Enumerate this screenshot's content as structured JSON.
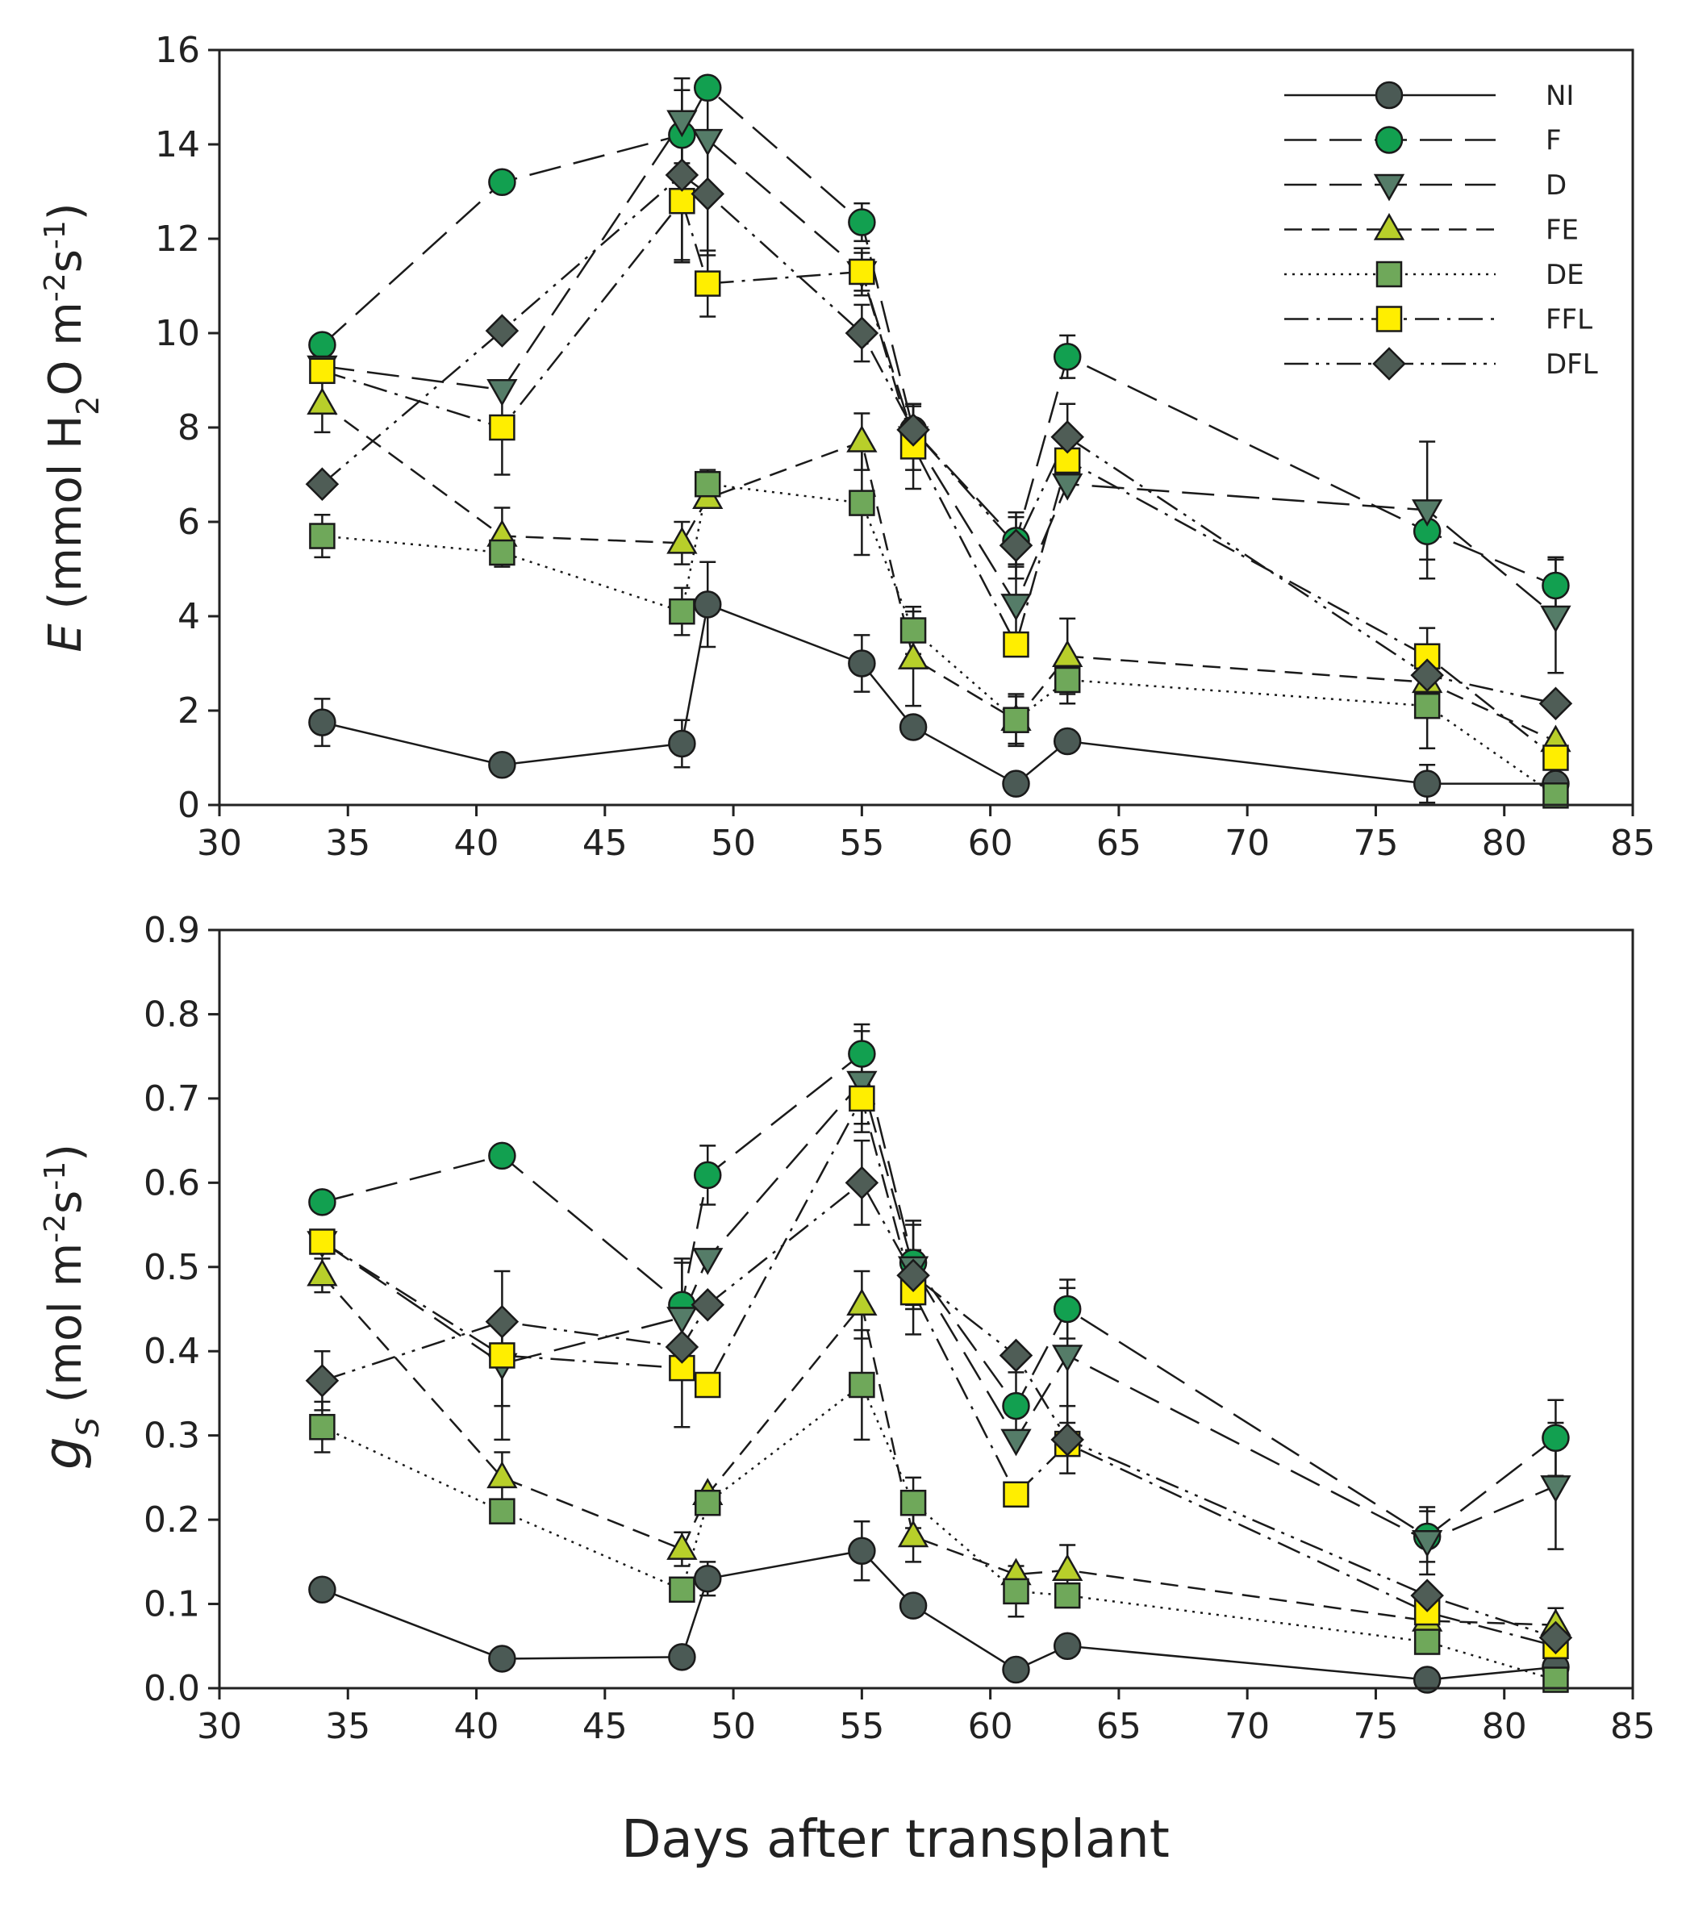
{
  "chart_data": [
    {
      "type": "line",
      "panel": "top",
      "ylabel_italic": "E",
      "ylabel_pre": " (mmol H",
      "ylabel_sub": "2",
      "ylabel_mid": "O m",
      "ylabel_sup1": "-2",
      "ylabel_s": "s",
      "ylabel_sup2": "-1",
      "ylabel_post": ")",
      "xlabel": "",
      "xlim": [
        30,
        85
      ],
      "ylim": [
        0,
        16
      ],
      "xticks": [
        "30",
        "35",
        "40",
        "45",
        "50",
        "55",
        "60",
        "65",
        "70",
        "75",
        "80",
        "85"
      ],
      "yticks": [
        "0",
        "2",
        "4",
        "6",
        "8",
        "10",
        "12",
        "14",
        "16"
      ],
      "series": [
        {
          "name": "NI",
          "x": [
            34,
            41,
            48,
            49,
            55,
            57,
            61,
            63,
            77,
            82
          ],
          "values": [
            1.75,
            0.85,
            1.3,
            4.25,
            3.0,
            1.65,
            0.45,
            1.35,
            0.45,
            0.45
          ],
          "err": [
            0.5,
            0,
            0.5,
            0.9,
            0.6,
            0,
            0,
            0,
            0.4,
            0
          ]
        },
        {
          "name": "F",
          "x": [
            34,
            41,
            48,
            49,
            55,
            57,
            61,
            63,
            77,
            82
          ],
          "values": [
            9.75,
            13.2,
            14.2,
            15.2,
            12.35,
            7.95,
            5.6,
            9.5,
            5.8,
            4.65
          ],
          "err": [
            0,
            0,
            0,
            0,
            0.4,
            0.5,
            0.5,
            0.45,
            0.6,
            0.6
          ]
        },
        {
          "name": "D",
          "x": [
            34,
            41,
            48,
            49,
            55,
            57,
            61,
            63,
            77,
            82
          ],
          "values": [
            9.3,
            8.8,
            14.5,
            14.1,
            11.3,
            7.8,
            4.25,
            6.8,
            6.25,
            4.0
          ],
          "err": [
            0,
            0,
            0.9,
            1.2,
            0.5,
            0.7,
            0.8,
            0,
            1.45,
            1.2
          ]
        },
        {
          "name": "FE",
          "x": [
            34,
            41,
            48,
            49,
            55,
            57,
            61,
            63,
            77,
            82
          ],
          "values": [
            8.5,
            5.7,
            5.55,
            6.5,
            7.7,
            3.1,
            1.8,
            3.15,
            2.6,
            1.35
          ],
          "err": [
            0.6,
            0.6,
            0.45,
            0,
            0.6,
            1.0,
            0.5,
            0.8,
            0.6,
            0
          ]
        },
        {
          "name": "DE",
          "x": [
            34,
            41,
            48,
            49,
            55,
            57,
            61,
            63,
            77,
            82
          ],
          "values": [
            5.7,
            5.35,
            4.1,
            6.8,
            6.4,
            3.7,
            1.8,
            2.65,
            2.1,
            0.2
          ],
          "err": [
            0.45,
            0.3,
            0.5,
            0.3,
            1.1,
            0.5,
            0.55,
            0.5,
            0.9,
            0
          ]
        },
        {
          "name": "FFL",
          "x": [
            34,
            41,
            48,
            49,
            55,
            57,
            61,
            63,
            77,
            82
          ],
          "values": [
            9.2,
            8.0,
            12.8,
            11.05,
            11.3,
            7.6,
            3.4,
            7.3,
            3.15,
            1.0
          ],
          "err": [
            0,
            1.0,
            1.3,
            0.7,
            0.4,
            0.9,
            0,
            0,
            0.6,
            0
          ]
        },
        {
          "name": "DFL",
          "x": [
            34,
            41,
            48,
            49,
            55,
            57,
            61,
            63,
            77,
            82
          ],
          "values": [
            6.8,
            10.05,
            13.35,
            12.95,
            10.0,
            7.95,
            5.5,
            7.8,
            2.75,
            2.15
          ],
          "err": [
            0,
            0,
            1.8,
            1.3,
            0.6,
            0,
            0.7,
            0.7,
            0,
            0
          ]
        }
      ]
    },
    {
      "type": "line",
      "panel": "bottom",
      "ylabel_italic": "g",
      "ylabel_sub_italic": "S",
      "ylabel_pre": " (mol m",
      "ylabel_sup1": "-2",
      "ylabel_s": "s",
      "ylabel_sup2": "-1",
      "ylabel_post": ")",
      "xlabel": "Days after transplant",
      "xlim": [
        30,
        85
      ],
      "ylim": [
        0,
        0.9
      ],
      "xticks": [
        "30",
        "35",
        "40",
        "45",
        "50",
        "55",
        "60",
        "65",
        "70",
        "75",
        "80",
        "85"
      ],
      "yticks": [
        "0.0",
        "0.1",
        "0.2",
        "0.3",
        "0.4",
        "0.5",
        "0.6",
        "0.7",
        "0.8",
        "0.9"
      ],
      "series": [
        {
          "name": "NI",
          "x": [
            34,
            41,
            48,
            49,
            55,
            57,
            61,
            63,
            77,
            82
          ],
          "values": [
            0.117,
            0.035,
            0.037,
            0.13,
            0.163,
            0.098,
            0.022,
            0.05,
            0.01,
            0.025
          ],
          "err": [
            0,
            0,
            0,
            0.02,
            0.035,
            0,
            0,
            0.01,
            0.01,
            0.01
          ]
        },
        {
          "name": "F",
          "x": [
            34,
            41,
            48,
            49,
            55,
            57,
            61,
            63,
            77,
            82
          ],
          "values": [
            0.577,
            0.632,
            0.455,
            0.609,
            0.753,
            0.505,
            0.335,
            0.45,
            0.18,
            0.297
          ],
          "err": [
            0,
            0,
            0.05,
            0.035,
            0.035,
            0.05,
            0.04,
            0.035,
            0.03,
            0.045
          ]
        },
        {
          "name": "D",
          "x": [
            34,
            41,
            48,
            49,
            55,
            57,
            61,
            63,
            77,
            82
          ],
          "values": [
            0.53,
            0.385,
            0.44,
            0.51,
            0.72,
            0.5,
            0.295,
            0.395,
            0.175,
            0.24
          ],
          "err": [
            0,
            0.05,
            0.07,
            0,
            0.06,
            0.05,
            0,
            0.08,
            0.04,
            0.075
          ]
        },
        {
          "name": "FE",
          "x": [
            34,
            41,
            48,
            49,
            55,
            57,
            61,
            63,
            77,
            82
          ],
          "values": [
            0.49,
            0.25,
            0.165,
            0.23,
            0.455,
            0.18,
            0.135,
            0.14,
            0.08,
            0.075
          ],
          "err": [
            0.02,
            0.03,
            0.02,
            0,
            0.04,
            0.03,
            0,
            0.03,
            0,
            0.02
          ]
        },
        {
          "name": "DE",
          "x": [
            34,
            41,
            48,
            49,
            55,
            57,
            61,
            63,
            77,
            82
          ],
          "values": [
            0.31,
            0.21,
            0.117,
            0.22,
            0.36,
            0.22,
            0.115,
            0.11,
            0.055,
            0.01
          ],
          "err": [
            0.03,
            0,
            0,
            0,
            0.065,
            0.03,
            0.03,
            0,
            0,
            0
          ]
        },
        {
          "name": "FFL",
          "x": [
            34,
            41,
            48,
            49,
            55,
            57,
            61,
            63,
            77,
            82
          ],
          "values": [
            0.53,
            0.395,
            0.38,
            0.36,
            0.7,
            0.47,
            0.23,
            0.29,
            0.09,
            0.05
          ],
          "err": [
            0,
            0.1,
            0.07,
            0,
            0.03,
            0.05,
            0,
            0,
            0,
            0
          ]
        },
        {
          "name": "DFL",
          "x": [
            34,
            41,
            48,
            49,
            55,
            57,
            61,
            63,
            77,
            82
          ],
          "values": [
            0.365,
            0.435,
            0.405,
            0.455,
            0.6,
            0.49,
            0.395,
            0.295,
            0.11,
            0.06
          ],
          "err": [
            0.035,
            0,
            0,
            0,
            0.05,
            0,
            0,
            0.04,
            0,
            0
          ]
        }
      ]
    }
  ],
  "legend": [
    {
      "label": "NI",
      "marker": "circle",
      "fill": "#4b5a55",
      "dash": "solid"
    },
    {
      "label": "F",
      "marker": "circle",
      "fill": "#12a050",
      "dash": "longdash"
    },
    {
      "label": "D",
      "marker": "triangle-down",
      "fill": "#557c68",
      "dash": "longdash"
    },
    {
      "label": "FE",
      "marker": "triangle-up",
      "fill": "#b8cf2a",
      "dash": "dash"
    },
    {
      "label": "DE",
      "marker": "square",
      "fill": "#6fa85a",
      "dash": "dot"
    },
    {
      "label": "FFL",
      "marker": "square",
      "fill": "#ffee00",
      "dash": "dashdot"
    },
    {
      "label": "DFL",
      "marker": "diamond",
      "fill": "#4f5d56",
      "dash": "dashdotdot"
    }
  ]
}
